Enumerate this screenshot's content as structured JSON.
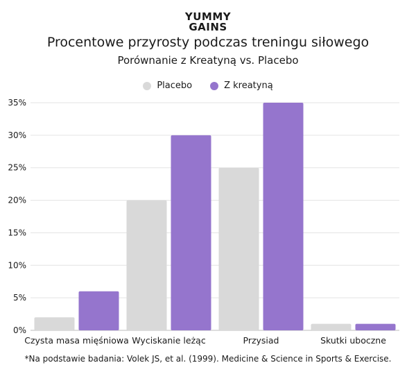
{
  "logo": {
    "line1": "YUMMY",
    "line2": "GAINS"
  },
  "chart_data": {
    "type": "bar",
    "title": "Procentowe przyrosty podczas treningu siłowego",
    "subtitle": "Porównanie z Kreatyną vs. Placebo",
    "categories": [
      "Czysta masa mięśniowa",
      "Wyciskanie leżąc",
      "Przysiad",
      "Skutki uboczne"
    ],
    "series": [
      {
        "name": "Placebo",
        "values": [
          2,
          20,
          25,
          1
        ],
        "color": "#d9d9d9"
      },
      {
        "name": "Z kreatyną",
        "values": [
          6,
          30,
          35,
          1
        ],
        "color": "#9575cd"
      }
    ],
    "y_ticks": [
      "0%",
      "5%",
      "10%",
      "15%",
      "20%",
      "25%",
      "30%",
      "35%"
    ],
    "ylim": [
      0,
      35
    ],
    "grid": true,
    "legend_position": "top-center",
    "footnote": "*Na podstawie badania: Volek JS, et al. (1999). Medicine & Science in Sports & Exercise."
  }
}
